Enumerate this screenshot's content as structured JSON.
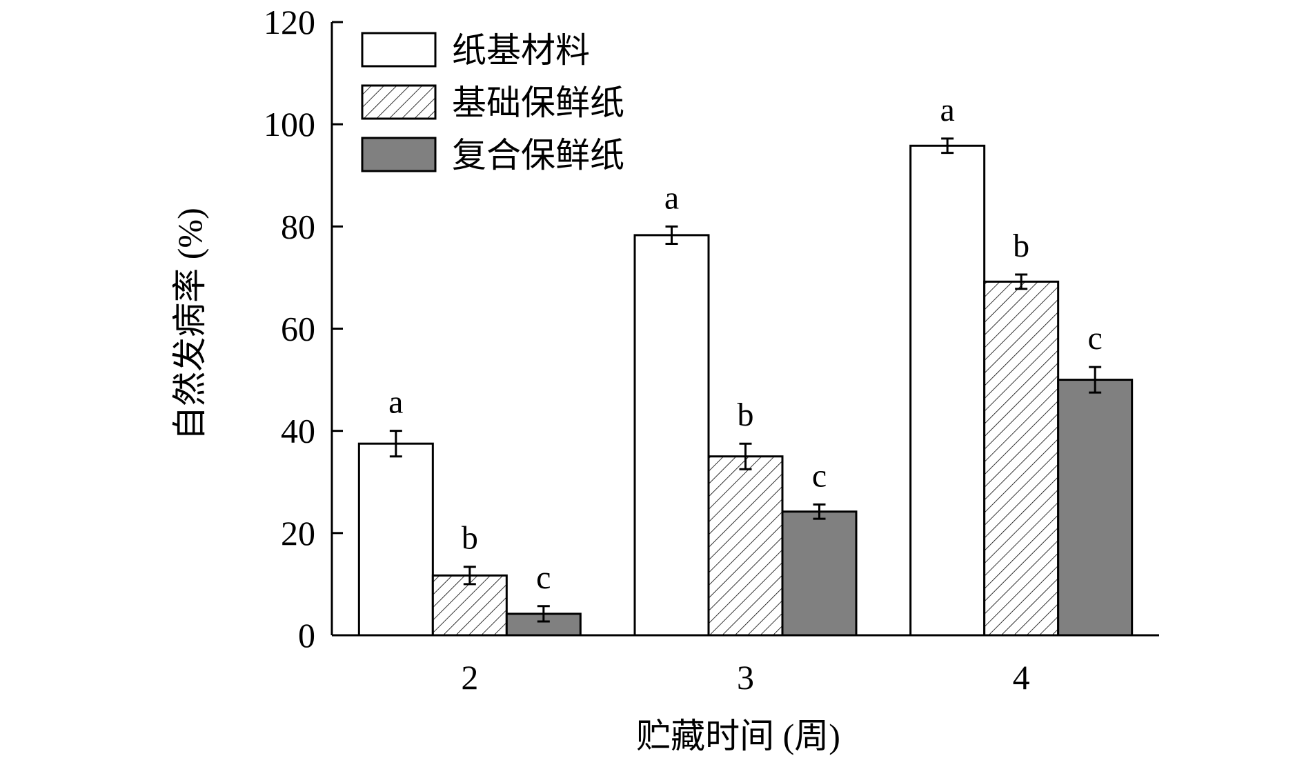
{
  "chart_data": {
    "type": "bar",
    "title": "",
    "xlabel": "贮藏时间 (周)",
    "ylabel": "自然发病率 (%)",
    "categories": [
      "2",
      "3",
      "4"
    ],
    "ylim": [
      0,
      120
    ],
    "yticks": [
      0,
      20,
      40,
      60,
      80,
      100,
      120
    ],
    "legend_position": "top-left",
    "grid": false,
    "series": [
      {
        "name": "纸基材料",
        "fill": "white",
        "values": [
          37.5,
          78.3,
          95.8
        ],
        "errors": [
          2.5,
          1.7,
          1.4
        ],
        "labels": [
          "a",
          "a",
          "a"
        ]
      },
      {
        "name": "基础保鲜纸",
        "fill": "hatched",
        "values": [
          11.7,
          35.0,
          69.2
        ],
        "errors": [
          1.7,
          2.5,
          1.4
        ],
        "labels": [
          "b",
          "b",
          "b"
        ]
      },
      {
        "name": "复合保鲜纸",
        "fill": "dark-gray",
        "values": [
          4.2,
          24.2,
          50.0
        ],
        "errors": [
          1.5,
          1.4,
          2.5
        ],
        "labels": [
          "c",
          "c",
          "c"
        ]
      }
    ],
    "colors": {
      "white": "#ffffff",
      "dark_gray": "#808080",
      "hatch": "#000000",
      "axis": "#000000"
    }
  }
}
